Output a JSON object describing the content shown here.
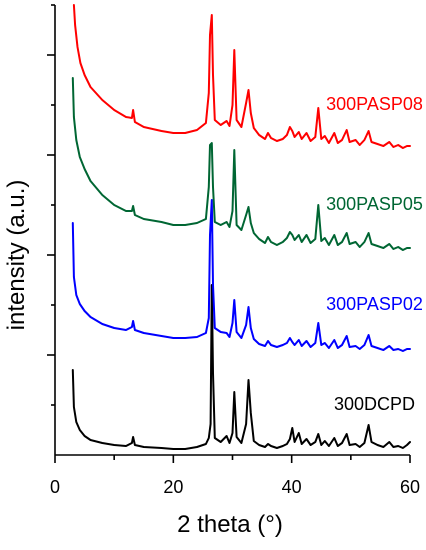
{
  "chart_data": {
    "type": "line",
    "xlabel": "2 theta (°)",
    "ylabel": "intensity (a.u.)",
    "xlim": [
      0,
      60
    ],
    "ylim": [
      0,
      450
    ],
    "xticks": [
      "0",
      "20",
      "40",
      "60"
    ],
    "grid": false,
    "series": [
      {
        "name": "300DCPD",
        "color": "#000000",
        "baseline": 0,
        "values": [
          [
            3,
            85
          ],
          [
            3.2,
            48
          ],
          [
            3.6,
            33
          ],
          [
            4.2,
            25
          ],
          [
            5,
            19
          ],
          [
            6,
            15
          ],
          [
            8,
            12
          ],
          [
            10,
            10
          ],
          [
            12,
            9
          ],
          [
            13,
            12
          ],
          [
            13.2,
            18
          ],
          [
            13.5,
            10
          ],
          [
            15,
            8
          ],
          [
            18,
            7
          ],
          [
            20,
            6
          ],
          [
            22,
            6
          ],
          [
            24,
            8
          ],
          [
            25.5,
            11
          ],
          [
            26,
            17
          ],
          [
            26.3,
            31
          ],
          [
            26.5,
            170
          ],
          [
            26.7,
            82
          ],
          [
            27,
            17
          ],
          [
            28,
            13
          ],
          [
            29,
            19
          ],
          [
            29.5,
            12
          ],
          [
            30,
            22
          ],
          [
            30.3,
            63
          ],
          [
            30.7,
            18
          ],
          [
            31.5,
            12
          ],
          [
            32.3,
            31
          ],
          [
            32.7,
            75
          ],
          [
            33.1,
            42
          ],
          [
            33.6,
            14
          ],
          [
            34.5,
            10
          ],
          [
            35.5,
            8
          ],
          [
            36,
            11
          ],
          [
            36.5,
            9
          ],
          [
            37.5,
            7
          ],
          [
            38.5,
            9
          ],
          [
            39.2,
            11
          ],
          [
            39.7,
            16
          ],
          [
            40.1,
            27
          ],
          [
            40.5,
            13
          ],
          [
            41.2,
            22
          ],
          [
            41.7,
            11
          ],
          [
            42.5,
            16
          ],
          [
            43.2,
            10
          ],
          [
            44,
            13
          ],
          [
            44.5,
            21
          ],
          [
            45,
            10
          ],
          [
            45.6,
            14
          ],
          [
            46.3,
            9
          ],
          [
            47.2,
            17
          ],
          [
            47.8,
            9
          ],
          [
            48.5,
            12
          ],
          [
            49.3,
            21
          ],
          [
            49.8,
            10
          ],
          [
            50.8,
            11
          ],
          [
            51.5,
            8
          ],
          [
            52.3,
            12
          ],
          [
            53,
            30
          ],
          [
            53.5,
            13
          ],
          [
            54.5,
            10
          ],
          [
            55.5,
            8
          ],
          [
            56.5,
            13
          ],
          [
            57.2,
            8
          ],
          [
            58,
            9
          ],
          [
            58.8,
            7
          ],
          [
            59.5,
            10
          ],
          [
            60,
            13
          ]
        ]
      },
      {
        "name": "300PASP02",
        "color": "#0000ff",
        "baseline": 100,
        "values": [
          [
            3,
            132
          ],
          [
            3.2,
            78
          ],
          [
            3.6,
            60
          ],
          [
            4.2,
            51
          ],
          [
            5,
            44
          ],
          [
            6,
            38
          ],
          [
            8,
            31
          ],
          [
            10,
            27
          ],
          [
            12,
            25
          ],
          [
            13,
            28
          ],
          [
            13.2,
            34
          ],
          [
            13.5,
            25
          ],
          [
            15,
            22
          ],
          [
            18,
            19
          ],
          [
            20,
            17
          ],
          [
            22,
            17
          ],
          [
            24,
            18
          ],
          [
            25.5,
            22
          ],
          [
            26,
            37
          ],
          [
            26.2,
            120
          ],
          [
            26.5,
            155
          ],
          [
            26.7,
            70
          ],
          [
            27,
            27
          ],
          [
            28,
            23
          ],
          [
            29,
            22
          ],
          [
            29.5,
            18
          ],
          [
            30,
            32
          ],
          [
            30.3,
            55
          ],
          [
            30.7,
            23
          ],
          [
            31.5,
            17
          ],
          [
            32.3,
            30
          ],
          [
            32.7,
            48
          ],
          [
            33.1,
            27
          ],
          [
            33.6,
            16
          ],
          [
            34.5,
            11
          ],
          [
            35.5,
            9
          ],
          [
            36,
            14
          ],
          [
            36.5,
            10
          ],
          [
            37.5,
            8
          ],
          [
            38.5,
            10
          ],
          [
            39.2,
            12
          ],
          [
            39.7,
            17
          ],
          [
            40.1,
            13
          ],
          [
            40.5,
            10
          ],
          [
            41.2,
            15
          ],
          [
            41.7,
            9
          ],
          [
            42.5,
            14
          ],
          [
            43.2,
            8
          ],
          [
            44,
            12
          ],
          [
            44.5,
            32
          ],
          [
            45,
            10
          ],
          [
            45.6,
            12
          ],
          [
            46.3,
            7
          ],
          [
            47.2,
            15
          ],
          [
            47.8,
            7
          ],
          [
            48.5,
            10
          ],
          [
            49.3,
            19
          ],
          [
            49.8,
            8
          ],
          [
            50.8,
            9
          ],
          [
            51.5,
            6
          ],
          [
            52.3,
            10
          ],
          [
            53,
            20
          ],
          [
            53.5,
            9
          ],
          [
            54.5,
            7
          ],
          [
            55.5,
            5
          ],
          [
            56.5,
            9
          ],
          [
            57.2,
            5
          ],
          [
            58,
            6
          ],
          [
            58.8,
            4
          ],
          [
            59.5,
            6
          ],
          [
            60,
            6
          ]
        ]
      },
      {
        "name": "300PASP05",
        "color": "#006633",
        "baseline": 200,
        "values": [
          [
            3,
            177
          ],
          [
            3.2,
            138
          ],
          [
            3.6,
            115
          ],
          [
            4.2,
            98
          ],
          [
            5,
            86
          ],
          [
            6,
            74
          ],
          [
            8,
            60
          ],
          [
            10,
            50
          ],
          [
            12,
            44
          ],
          [
            13,
            44
          ],
          [
            13.2,
            49
          ],
          [
            13.5,
            40
          ],
          [
            15,
            36
          ],
          [
            18,
            33
          ],
          [
            20,
            30
          ],
          [
            22,
            30
          ],
          [
            24,
            32
          ],
          [
            25.5,
            36
          ],
          [
            26,
            68
          ],
          [
            26.2,
            110
          ],
          [
            26.5,
            112
          ],
          [
            26.7,
            68
          ],
          [
            27,
            33
          ],
          [
            28,
            30
          ],
          [
            29,
            33
          ],
          [
            29.5,
            28
          ],
          [
            30,
            44
          ],
          [
            30.3,
            105
          ],
          [
            30.7,
            30
          ],
          [
            31.5,
            25
          ],
          [
            32.3,
            40
          ],
          [
            32.7,
            48
          ],
          [
            33.1,
            32
          ],
          [
            33.6,
            22
          ],
          [
            34.5,
            16
          ],
          [
            35.5,
            12
          ],
          [
            36,
            18
          ],
          [
            36.5,
            13
          ],
          [
            37.5,
            10
          ],
          [
            38.5,
            13
          ],
          [
            39.2,
            17
          ],
          [
            39.7,
            23
          ],
          [
            40.1,
            20
          ],
          [
            40.5,
            15
          ],
          [
            41.2,
            20
          ],
          [
            41.7,
            13
          ],
          [
            42.5,
            20
          ],
          [
            43.2,
            12
          ],
          [
            44,
            16
          ],
          [
            44.5,
            50
          ],
          [
            45,
            14
          ],
          [
            45.6,
            17
          ],
          [
            46.3,
            10
          ],
          [
            47.2,
            20
          ],
          [
            47.8,
            10
          ],
          [
            48.5,
            13
          ],
          [
            49.3,
            22
          ],
          [
            49.8,
            11
          ],
          [
            50.8,
            13
          ],
          [
            51.5,
            8
          ],
          [
            52.3,
            13
          ],
          [
            53,
            22
          ],
          [
            53.5,
            11
          ],
          [
            54.5,
            9
          ],
          [
            55.5,
            7
          ],
          [
            56.5,
            11
          ],
          [
            57.2,
            6
          ],
          [
            58,
            8
          ],
          [
            58.8,
            5
          ],
          [
            59.5,
            7
          ],
          [
            60,
            7
          ]
        ]
      },
      {
        "name": "300PASP08",
        "color": "#ff0000",
        "baseline": 300,
        "values": [
          [
            3.2,
            150
          ],
          [
            3.4,
            130
          ],
          [
            3.8,
            108
          ],
          [
            4.3,
            92
          ],
          [
            5,
            80
          ],
          [
            6,
            68
          ],
          [
            8,
            55
          ],
          [
            10,
            45
          ],
          [
            12,
            38
          ],
          [
            13,
            37
          ],
          [
            13.2,
            45
          ],
          [
            13.5,
            33
          ],
          [
            15,
            28
          ],
          [
            18,
            24
          ],
          [
            20,
            22
          ],
          [
            22,
            22
          ],
          [
            24,
            25
          ],
          [
            25.5,
            32
          ],
          [
            26,
            62
          ],
          [
            26.2,
            120
          ],
          [
            26.5,
            140
          ],
          [
            26.7,
            80
          ],
          [
            27,
            35
          ],
          [
            28,
            30
          ],
          [
            29,
            34
          ],
          [
            29.5,
            29
          ],
          [
            30,
            50
          ],
          [
            30.3,
            105
          ],
          [
            30.7,
            35
          ],
          [
            31.5,
            28
          ],
          [
            32.3,
            52
          ],
          [
            32.7,
            65
          ],
          [
            33.1,
            42
          ],
          [
            33.6,
            27
          ],
          [
            34.5,
            20
          ],
          [
            35.5,
            16
          ],
          [
            36,
            22
          ],
          [
            36.5,
            17
          ],
          [
            37.5,
            14
          ],
          [
            38.5,
            16
          ],
          [
            39.2,
            20
          ],
          [
            39.7,
            28
          ],
          [
            40.1,
            24
          ],
          [
            40.5,
            18
          ],
          [
            41.2,
            23
          ],
          [
            41.7,
            16
          ],
          [
            42.5,
            22
          ],
          [
            43.2,
            14
          ],
          [
            44,
            18
          ],
          [
            44.5,
            47
          ],
          [
            45,
            16
          ],
          [
            45.6,
            19
          ],
          [
            46.3,
            12
          ],
          [
            47.2,
            22
          ],
          [
            47.8,
            12
          ],
          [
            48.5,
            15
          ],
          [
            49.3,
            25
          ],
          [
            49.8,
            13
          ],
          [
            50.8,
            15
          ],
          [
            51.5,
            10
          ],
          [
            52.3,
            15
          ],
          [
            53,
            24
          ],
          [
            53.5,
            13
          ],
          [
            54.5,
            11
          ],
          [
            55.5,
            9
          ],
          [
            56.5,
            13
          ],
          [
            57.2,
            8
          ],
          [
            58,
            10
          ],
          [
            58.8,
            7
          ],
          [
            59.5,
            9
          ],
          [
            60,
            9
          ]
        ]
      }
    ]
  }
}
